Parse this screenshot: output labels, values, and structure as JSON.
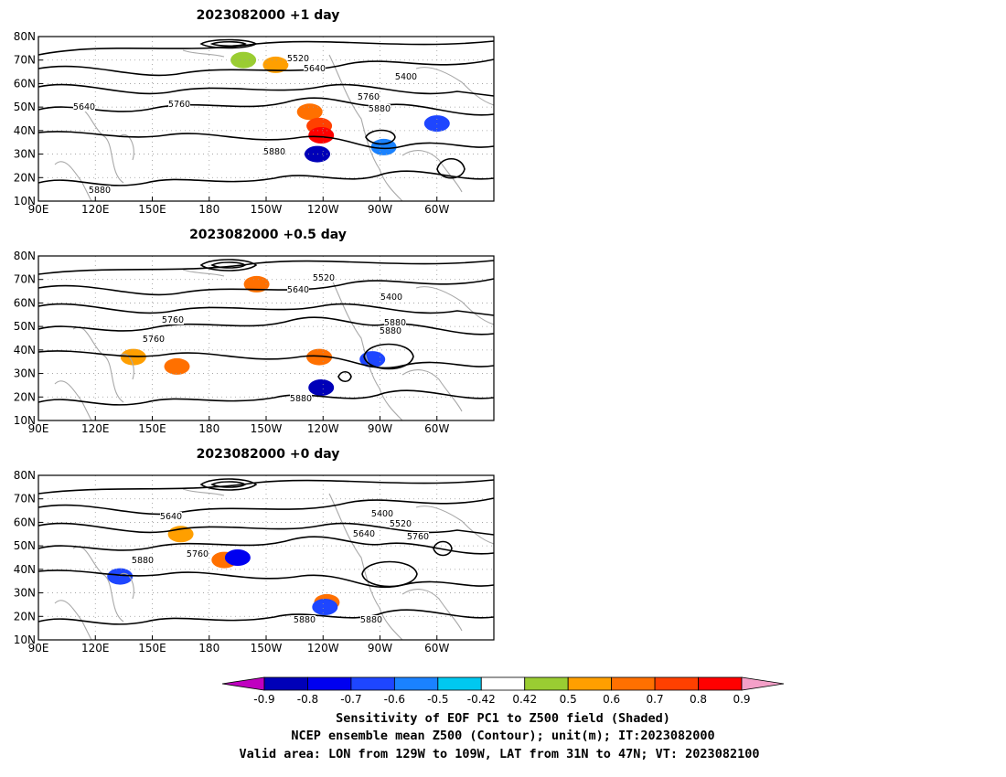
{
  "panels": [
    {
      "title": "2023082000  +1 day",
      "contour_labels": [
        "5520",
        "5640",
        "5400",
        "5640",
        "5760",
        "5760",
        "5880",
        "5880",
        "5880"
      ],
      "shading": [
        {
          "lon": -162,
          "lat": 70,
          "value": 0.55
        },
        {
          "lon": -145,
          "lat": 68,
          "value": 0.65
        },
        {
          "lon": -127,
          "lat": 48,
          "value": 0.75
        },
        {
          "lon": -122,
          "lat": 42,
          "value": 0.8
        },
        {
          "lon": -121,
          "lat": 38,
          "value": 0.9
        },
        {
          "lon": -123,
          "lat": 30,
          "value": -0.8
        },
        {
          "lon": -88,
          "lat": 33,
          "value": -0.5
        },
        {
          "lon": -60,
          "lat": 43,
          "value": -0.6
        }
      ]
    },
    {
      "title": "2023082000  +0.5 day",
      "contour_labels": [
        "5520",
        "5640",
        "5400",
        "5760",
        "5880",
        "5760",
        "5880",
        "5880"
      ],
      "shading": [
        {
          "lon": -155,
          "lat": 68,
          "value": 0.7
        },
        {
          "lon": 140,
          "lat": 37,
          "value": 0.65
        },
        {
          "lon": 163,
          "lat": 33,
          "value": 0.7
        },
        {
          "lon": -122,
          "lat": 37,
          "value": 0.75
        },
        {
          "lon": -121,
          "lat": 24,
          "value": -0.85
        },
        {
          "lon": -94,
          "lat": 36,
          "value": -0.6
        }
      ]
    },
    {
      "title": "2023082000  +0 day",
      "contour_labels": [
        "5640",
        "5400",
        "5520",
        "5640",
        "5760",
        "5760",
        "5880",
        "5880",
        "5880"
      ],
      "shading": [
        {
          "lon": 165,
          "lat": 55,
          "value": 0.65
        },
        {
          "lon": -172,
          "lat": 44,
          "value": 0.7
        },
        {
          "lon": -165,
          "lat": 45,
          "value": -0.7
        },
        {
          "lon": 133,
          "lat": 37,
          "value": -0.6
        },
        {
          "lon": -118,
          "lat": 26,
          "value": 0.7
        },
        {
          "lon": -119,
          "lat": 24,
          "value": -0.6
        }
      ]
    }
  ],
  "axes": {
    "lon_ticks": [
      "90E",
      "120E",
      "150E",
      "180",
      "150W",
      "120W",
      "90W",
      "60W"
    ],
    "lat_ticks": [
      "80N",
      "70N",
      "60N",
      "50N",
      "40N",
      "30N",
      "20N",
      "10N"
    ]
  },
  "colorbar": {
    "ticks": [
      "-0.9",
      "-0.8",
      "-0.7",
      "-0.6",
      "-0.5",
      "-0.42",
      "0.42",
      "0.5",
      "0.6",
      "0.7",
      "0.8",
      "0.9"
    ],
    "colors": [
      "#c000c0",
      "#0000b8",
      "#0000f0",
      "#1e46ff",
      "#1a82ff",
      "#00c8f0",
      "#ffffff",
      "#9acd32",
      "#ff9f00",
      "#ff7000",
      "#ff4000",
      "#ff0000",
      "#f4a0c8"
    ]
  },
  "caption": {
    "line1": "Sensitivity of EOF PC1 to Z500 field (Shaded)",
    "line2": "NCEP ensemble mean Z500 (Contour); unit(m); IT:2023082000",
    "line3": "Valid area: LON from 129W to 109W, LAT from 31N to 47N; VT: 2023082100"
  }
}
